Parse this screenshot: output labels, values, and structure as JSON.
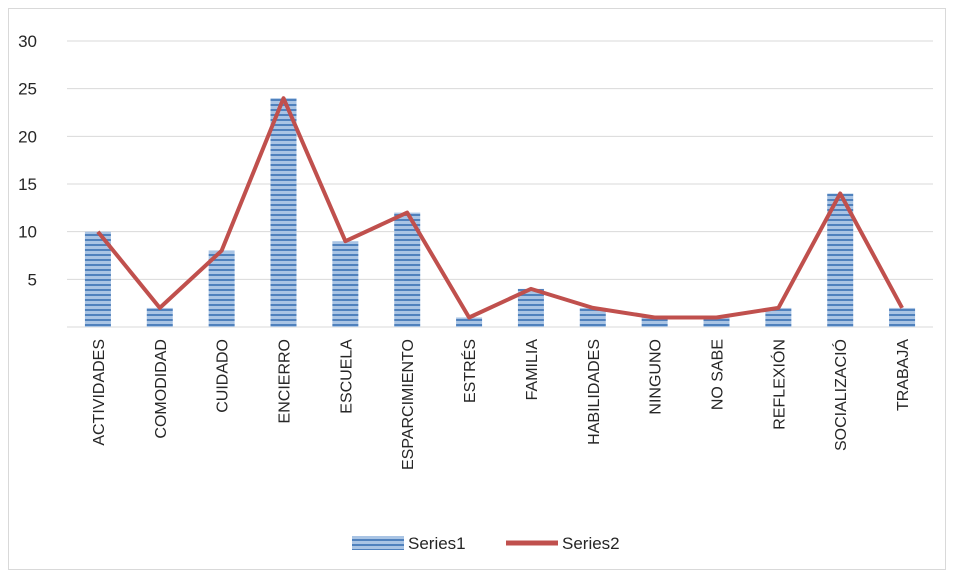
{
  "chart_data": {
    "type": "bar",
    "categories": [
      "ACTIVIDADES",
      "COMODIDAD",
      "CUIDADO",
      "ENCIERRO",
      "ESCUELA",
      "ESPARCIMIENTO",
      "ESTRÉS",
      "FAMILIA",
      "HABILIDADES",
      "NINGUNO",
      "NO SABE",
      "REFLEXIÓN",
      "SOCIALIZACIÓ",
      "TRABAJA"
    ],
    "series": [
      {
        "name": "Series1",
        "kind": "bar",
        "color": "#4f81bd",
        "values": [
          10,
          2,
          8,
          24,
          9,
          12,
          1,
          4,
          2,
          1,
          1,
          2,
          14,
          2
        ]
      },
      {
        "name": "Series2",
        "kind": "line",
        "color": "#c0504d",
        "values": [
          10,
          2,
          8,
          24,
          9,
          12,
          1,
          4,
          2,
          1,
          1,
          2,
          14,
          2
        ]
      }
    ],
    "y_ticks": [
      "5",
      "10",
      "15",
      "20",
      "25",
      "30"
    ],
    "ylim": [
      0,
      30
    ],
    "grid": true,
    "legend_position": "bottom"
  }
}
